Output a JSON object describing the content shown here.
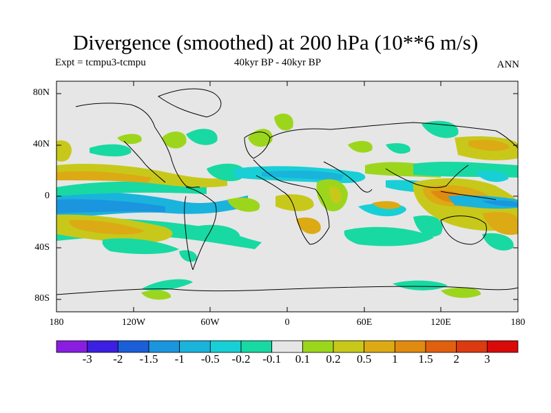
{
  "title": "Divergence (smoothed) at 200 hPa (10**6 m/s)",
  "experiment": "Expt = tcmpu3-tcmpu",
  "period": "40kyr BP - 40kyr BP",
  "season": "ANN",
  "lat_labels": [
    "80N",
    "40N",
    "0",
    "40S",
    "80S"
  ],
  "lon_labels": [
    "180",
    "120W",
    "60W",
    "0",
    "60E",
    "120E",
    "180"
  ],
  "colorbar": {
    "labels": [
      "-3",
      "-2",
      "-1.5",
      "-1",
      "-0.5",
      "-0.2",
      "-0.1",
      "0.1",
      "0.2",
      "0.5",
      "1",
      "1.5",
      "2",
      "3"
    ],
    "colors": [
      "#8a1ee0",
      "#3c1fe0",
      "#1a5fd8",
      "#1a95de",
      "#1ab3dc",
      "#18cfd6",
      "#18d9a2",
      "#e6e6e6",
      "#9cd61c",
      "#c8c81a",
      "#dcaa14",
      "#e08a10",
      "#e0600e",
      "#dc3a10",
      "#d80a0a"
    ]
  },
  "field_colors": {
    "neutral": "#e6e6e6",
    "neg_weak": "#18d9a2",
    "neg_mid": "#18cfd6",
    "neg_strong": "#1ab3dc",
    "neg_stronger": "#1a95de",
    "pos_weak": "#9cd61c",
    "pos_mid": "#c8c81a",
    "pos_strong": "#dcaa14",
    "pos_stronger": "#e08a10"
  }
}
